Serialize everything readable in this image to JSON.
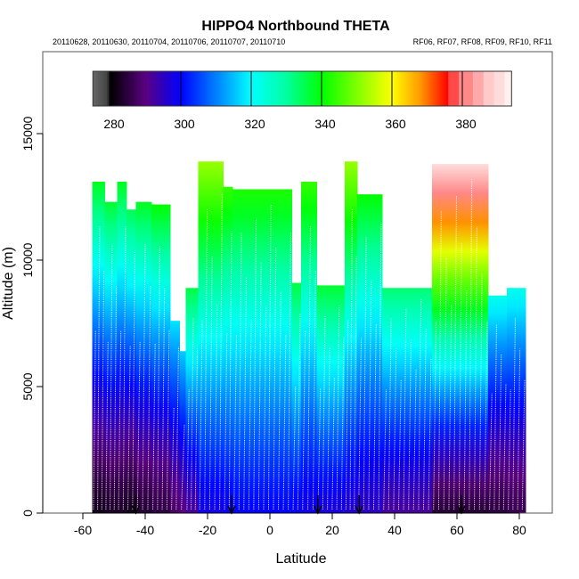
{
  "chart_data": {
    "type": "heatmap",
    "title": "HIPPO4 Northbound THETA",
    "subtitle_left": "20110628, 20110630, 20110704, 20110706, 20110707, 20110710",
    "subtitle_right": "RF06, RF07, RF08, RF09, RF10, RF11",
    "xlabel": "Latitude",
    "ylabel": "Altitude (m)",
    "xlim": [
      -73,
      90
    ],
    "ylim": [
      0,
      18200
    ],
    "xticks": [
      -60,
      -40,
      -20,
      0,
      20,
      40,
      60,
      80
    ],
    "yticks": [
      0,
      5000,
      10000,
      15000
    ],
    "colorbar": {
      "range": [
        275,
        394
      ],
      "ticks": [
        280,
        300,
        320,
        340,
        360,
        380
      ],
      "stops": [
        [
          275,
          "#666666"
        ],
        [
          279,
          "#444444"
        ],
        [
          280,
          "#000000"
        ],
        [
          290,
          "#5a0080"
        ],
        [
          300,
          "#0000ff"
        ],
        [
          320,
          "#00ffff"
        ],
        [
          330,
          "#00ffa0"
        ],
        [
          340,
          "#00ff00"
        ],
        [
          360,
          "#ffff00"
        ],
        [
          368,
          "#ff9900"
        ],
        [
          376,
          "#ff0000"
        ]
      ],
      "pink_blocks": [
        [
          376,
          379,
          "#ff4848"
        ],
        [
          379,
          383,
          "#ff8888"
        ],
        [
          383,
          386,
          "#ffaaaa"
        ],
        [
          386,
          389,
          "#ffcaca"
        ],
        [
          389,
          392,
          "#ffdcdc"
        ],
        [
          392,
          394,
          "#fff0f0"
        ]
      ]
    },
    "columns_note": "each: [lat_start, lat_end, top_altitude_m, theta_surface_K, theta_top_K]",
    "columns": [
      [
        -57,
        -53,
        13100,
        282,
        338
      ],
      [
        -53,
        -49,
        12300,
        283,
        337
      ],
      [
        -49,
        -46,
        13100,
        283,
        338
      ],
      [
        -46,
        -43,
        12000,
        282,
        335
      ],
      [
        -43,
        -38,
        12300,
        284,
        338
      ],
      [
        -38,
        -32,
        12200,
        285,
        340
      ],
      [
        -32,
        -29,
        7600,
        288,
        318
      ],
      [
        -29,
        -27,
        6400,
        290,
        316
      ],
      [
        -27,
        -23,
        8900,
        292,
        336
      ],
      [
        -23,
        -15,
        13900,
        298,
        352
      ],
      [
        -15,
        -12,
        12900,
        299,
        344
      ],
      [
        -12,
        7,
        12800,
        300,
        342
      ],
      [
        7,
        10,
        9100,
        299,
        336
      ],
      [
        10,
        15,
        13100,
        298,
        344
      ],
      [
        15,
        24,
        9000,
        297,
        337
      ],
      [
        24,
        28,
        13900,
        296,
        352
      ],
      [
        28,
        36,
        12600,
        295,
        340
      ],
      [
        36,
        52,
        8900,
        292,
        333
      ],
      [
        52,
        70,
        13800,
        284,
        390
      ],
      [
        70,
        76,
        8600,
        285,
        322
      ],
      [
        76,
        82,
        8900,
        286,
        322
      ]
    ],
    "sounding_arrows_lat": [
      -43,
      -12.3,
      15.4,
      28.6,
      61.4
    ]
  }
}
